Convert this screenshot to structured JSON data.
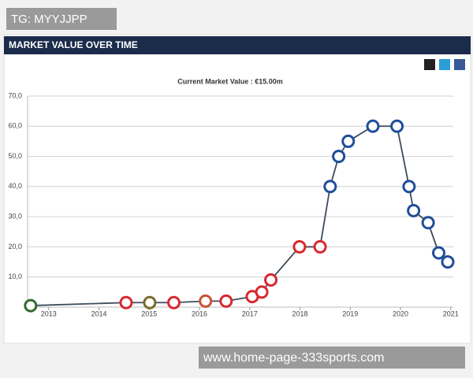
{
  "chart_data": {
    "type": "line",
    "title": "MARKET VALUE OVER TIME",
    "subtitle": "Current Market Value : €15.00m",
    "annotations": [
      "TG: MYYJJPP",
      "www.home-page-333sports.com"
    ],
    "x": [
      2012.64,
      2014.54,
      2015.01,
      2015.49,
      2016.12,
      2016.53,
      2017.05,
      2017.24,
      2017.42,
      2017.99,
      2018.4,
      2018.6,
      2018.77,
      2018.96,
      2019.45,
      2019.93,
      2020.17,
      2020.26,
      2020.55,
      2020.76,
      2020.94
    ],
    "series": [
      {
        "color": "#3d4b5c",
        "point_colors": [
          "#2f6b2f",
          "#d8282e",
          "#7a6a2a",
          "#d8282e",
          "#c8553a",
          "#d8282e",
          "#d8282e",
          "#d8282e",
          "#d8282e",
          "#d8282e",
          "#d8282e",
          "#1f4e9a",
          "#1f4e9a",
          "#1f4e9a",
          "#1f4e9a",
          "#1f4e9a",
          "#1f4e9a",
          "#1f4e9a",
          "#1f4e9a",
          "#1f4e9a",
          "#1f4e9a"
        ],
        "values": [
          0.5,
          1.5,
          1.5,
          1.5,
          2,
          2,
          3.5,
          5,
          9,
          20,
          20,
          40,
          50,
          55,
          60,
          60,
          40,
          32,
          28,
          18,
          15
        ]
      }
    ],
    "xlim": [
      2012.58,
      2021.05
    ],
    "xticks": [
      2013,
      2014,
      2015,
      2016,
      2017,
      2018,
      2019,
      2020,
      2021
    ],
    "ylim": [
      0,
      70
    ],
    "yticks": [
      {
        "value": 10,
        "label": "10,0"
      },
      {
        "value": 20,
        "label": "20,0"
      },
      {
        "value": 30,
        "label": "30,0"
      },
      {
        "value": 40,
        "label": "40,0"
      },
      {
        "value": 50,
        "label": "50,0"
      },
      {
        "value": 60,
        "label": "60,0"
      },
      {
        "value": 70,
        "label": "70,0"
      }
    ],
    "grid": true
  }
}
